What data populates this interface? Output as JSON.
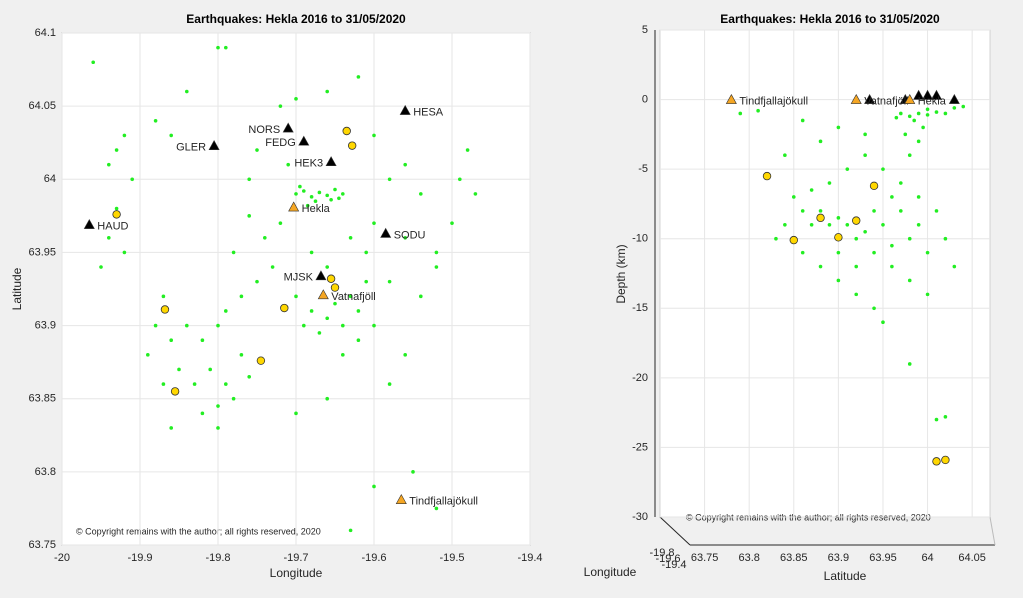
{
  "chart_data": [
    {
      "type": "scatter",
      "title": "Earthquakes: Hekla 2016 to 31/05/2020",
      "xlabel": "Longitude",
      "ylabel": "Latitude",
      "annotation": "© Copyright remains with the author; all rights reserved, 2020",
      "xlim": [
        -20,
        -19.4
      ],
      "xticks": [
        -20,
        -19.9,
        -19.8,
        -19.7,
        -19.6,
        -19.5,
        -19.4
      ],
      "ylim": [
        63.75,
        64.1
      ],
      "yticks": [
        63.75,
        63.8,
        63.85,
        63.9,
        63.95,
        64,
        64.05,
        64.1
      ],
      "grid": true,
      "series": [
        {
          "marker": "dot",
          "color": "#22ee22",
          "x": [
            -19.7,
            -19.69,
            -19.68,
            -19.67,
            -19.66,
            -19.65,
            -19.64,
            -19.695,
            -19.675,
            -19.655,
            -19.685,
            -19.645,
            -19.72,
            -19.74,
            -19.76,
            -19.78,
            -19.73,
            -19.75,
            -19.77,
            -19.79,
            -19.8,
            -19.82,
            -19.81,
            -19.79,
            -19.78,
            -19.8,
            -19.76,
            -19.77,
            -19.83,
            -19.82,
            -19.68,
            -19.66,
            -19.64,
            -19.62,
            -19.63,
            -19.65,
            -19.67,
            -19.69,
            -19.7,
            -19.61,
            -19.6,
            -19.62,
            -19.64,
            -19.66,
            -19.68,
            -19.63,
            -19.61,
            -19.6,
            -19.58,
            -19.87,
            -19.88,
            -19.86,
            -19.89,
            -19.85,
            -19.87,
            -19.84,
            -19.94,
            -19.92,
            -19.95,
            -19.93,
            -19.92,
            -19.94,
            -19.91,
            -19.93,
            -19.8,
            -19.79,
            -19.84,
            -19.72,
            -19.7,
            -19.66,
            -19.62,
            -19.75,
            -19.76,
            -19.71,
            -19.6,
            -19.58,
            -19.56,
            -19.54,
            -19.86,
            -19.88,
            -19.48,
            -19.49,
            -19.47,
            -19.5,
            -19.52,
            -19.54,
            -19.56,
            -19.52,
            -19.56,
            -19.63,
            -19.6,
            -19.58,
            -19.7,
            -19.66,
            -19.55,
            -19.52,
            -19.96,
            -19.8,
            -19.86
          ],
          "values": [
            63.99,
            63.992,
            63.988,
            63.991,
            63.989,
            63.993,
            63.99,
            63.995,
            63.985,
            63.986,
            63.982,
            63.987,
            63.97,
            63.96,
            63.975,
            63.95,
            63.94,
            63.93,
            63.92,
            63.91,
            63.9,
            63.89,
            63.87,
            63.86,
            63.85,
            63.845,
            63.865,
            63.88,
            63.86,
            63.84,
            63.91,
            63.905,
            63.9,
            63.91,
            63.92,
            63.915,
            63.895,
            63.9,
            63.92,
            63.93,
            63.9,
            63.89,
            63.88,
            63.94,
            63.95,
            63.96,
            63.95,
            63.97,
            63.93,
            63.92,
            63.9,
            63.89,
            63.88,
            63.87,
            63.86,
            63.9,
            63.96,
            63.95,
            63.94,
            64.02,
            64.03,
            64.01,
            64,
            63.98,
            64.09,
            64.09,
            64.06,
            64.05,
            64.055,
            64.06,
            64.07,
            64.02,
            64,
            64.01,
            64.03,
            64,
            64.01,
            63.99,
            64.03,
            64.04,
            64.02,
            64,
            63.99,
            63.97,
            63.94,
            63.92,
            63.88,
            63.95,
            63.96,
            63.76,
            63.79,
            63.86,
            63.84,
            63.85,
            63.8,
            63.775,
            64.08,
            63.83,
            63.83
          ]
        },
        {
          "marker": "circle",
          "color": "#ffd700",
          "x": [
            -19.635,
            -19.628,
            -19.93,
            -19.655,
            -19.65,
            -19.715,
            -19.868,
            -19.745,
            -19.855
          ],
          "values": [
            64.033,
            64.023,
            63.976,
            63.932,
            63.926,
            63.912,
            63.911,
            63.876,
            63.855
          ]
        },
        {
          "marker": "triangle",
          "color": "#000000",
          "labels": [
            "HESA",
            "NORS",
            "FEDG",
            "GLER",
            "HEK3",
            "SODU",
            "HAUD",
            "MJSK"
          ],
          "x": [
            -19.56,
            -19.71,
            -19.69,
            -19.805,
            -19.655,
            -19.585,
            -19.965,
            -19.668
          ],
          "values": [
            64.047,
            64.035,
            64.026,
            64.023,
            64.012,
            63.963,
            63.969,
            63.934
          ]
        },
        {
          "marker": "triangle",
          "color": "#f5a623",
          "labels": [
            "Hekla",
            "Vatnafjöll",
            "Tindfjallajökull"
          ],
          "x": [
            -19.703,
            -19.665,
            -19.565
          ],
          "values": [
            63.981,
            63.921,
            63.781
          ]
        }
      ]
    },
    {
      "type": "scatter",
      "title": "Earthquakes: Hekla 2016 to 31/05/2020",
      "xlabel": "Latitude",
      "ylabel": "Depth (km)",
      "zlabel": "Longitude",
      "zticks": [
        -19.8,
        -19.6,
        -19.4
      ],
      "annotation": "© Copyright remains with the author; all rights reserved, 2020",
      "xlim": [
        63.7,
        64.07
      ],
      "xticks": [
        63.75,
        63.8,
        63.85,
        63.9,
        63.95,
        64,
        64.05
      ],
      "ylim": [
        -30,
        5
      ],
      "yticks": [
        -30,
        -25,
        -20,
        -15,
        -10,
        -5,
        0,
        5
      ],
      "grid": true,
      "series": [
        {
          "marker": "dot",
          "color": "#22ee22",
          "x": [
            63.97,
            63.98,
            63.99,
            64,
            64.01,
            64.02,
            63.985,
            63.995,
            63.975,
            63.99,
            63.98,
            64,
            63.965,
            64.03,
            64.04,
            63.85,
            63.86,
            63.87,
            63.88,
            63.89,
            63.9,
            63.91,
            63.92,
            63.93,
            63.94,
            63.95,
            63.96,
            63.97,
            63.98,
            63.99,
            64,
            64.01,
            63.86,
            63.88,
            63.9,
            63.92,
            63.94,
            63.96,
            63.98,
            63.89,
            63.91,
            63.93,
            63.95,
            63.97,
            63.99,
            63.84,
            63.83,
            63.87,
            63.9,
            63.92,
            63.94,
            63.96,
            64.02,
            64.03,
            63.88,
            63.9,
            63.86,
            63.84,
            63.93,
            63.95,
            64,
            63.98,
            64.01,
            64.02,
            64.02,
            63.79,
            63.81
          ],
          "values": [
            -1,
            -1.2,
            -1,
            -1.1,
            -0.9,
            -1,
            -1.5,
            -2,
            -2.5,
            -3,
            -4,
            -0.7,
            -1.3,
            -0.6,
            -0.5,
            -7,
            -8,
            -9,
            -8,
            -9,
            -8.5,
            -9,
            -10,
            -9.5,
            -8,
            -9,
            -7,
            -8,
            -10,
            -9,
            -11,
            -8,
            -11,
            -12,
            -11,
            -12,
            -11,
            -12,
            -13,
            -6,
            -5,
            -4,
            -5,
            -6,
            -7,
            -9,
            -10,
            -6.5,
            -13,
            -14,
            -15,
            -10.5,
            -10,
            -12,
            -3,
            -2,
            -1.5,
            -4,
            -2.5,
            -16,
            -14,
            -19,
            -23,
            -22.8,
            -26,
            -1,
            -0.8
          ]
        },
        {
          "marker": "circle",
          "color": "#ffd700",
          "x": [
            63.82,
            63.85,
            63.88,
            63.9,
            63.92,
            63.94,
            64.01,
            64.02
          ],
          "values": [
            -5.5,
            -10.1,
            -8.5,
            -9.9,
            -8.7,
            -6.2,
            -26,
            -25.9
          ]
        },
        {
          "marker": "triangle",
          "color": "#000000",
          "x": [
            63.935,
            63.975,
            63.99,
            64,
            64.01,
            64.03
          ],
          "values": [
            0,
            0,
            0.3,
            0.3,
            0.3,
            0
          ]
        },
        {
          "marker": "triangle",
          "color": "#f5a623",
          "labels": [
            "Tindfjallajökull",
            "Vatnafjöll",
            "Hekla"
          ],
          "x": [
            63.78,
            63.92,
            63.98
          ],
          "values": [
            0,
            0,
            0
          ]
        }
      ]
    }
  ]
}
